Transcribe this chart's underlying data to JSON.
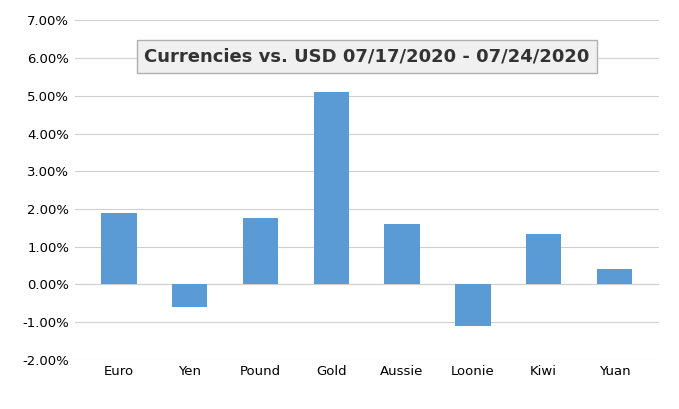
{
  "title": "Currencies vs. USD 07/17/2020 - 07/24/2020",
  "categories": [
    "Euro",
    "Yen",
    "Pound",
    "Gold",
    "Aussie",
    "Loonie",
    "Kiwi",
    "Yuan"
  ],
  "values": [
    0.019,
    -0.006,
    0.0175,
    0.051,
    0.016,
    -0.011,
    0.0135,
    0.004
  ],
  "bar_color": "#5B9BD5",
  "ylim": [
    -0.02,
    0.07
  ],
  "yticks": [
    -0.02,
    -0.01,
    0.0,
    0.01,
    0.02,
    0.03,
    0.04,
    0.05,
    0.06,
    0.07
  ],
  "background_color": "#FFFFFF",
  "plot_bg_color": "#FFFFFF",
  "grid_color": "#D0D0D0",
  "title_fontsize": 13,
  "tick_fontsize": 9.5,
  "title_box_facecolor": "#F0F0F0",
  "title_box_edgecolor": "#B0B0B0"
}
